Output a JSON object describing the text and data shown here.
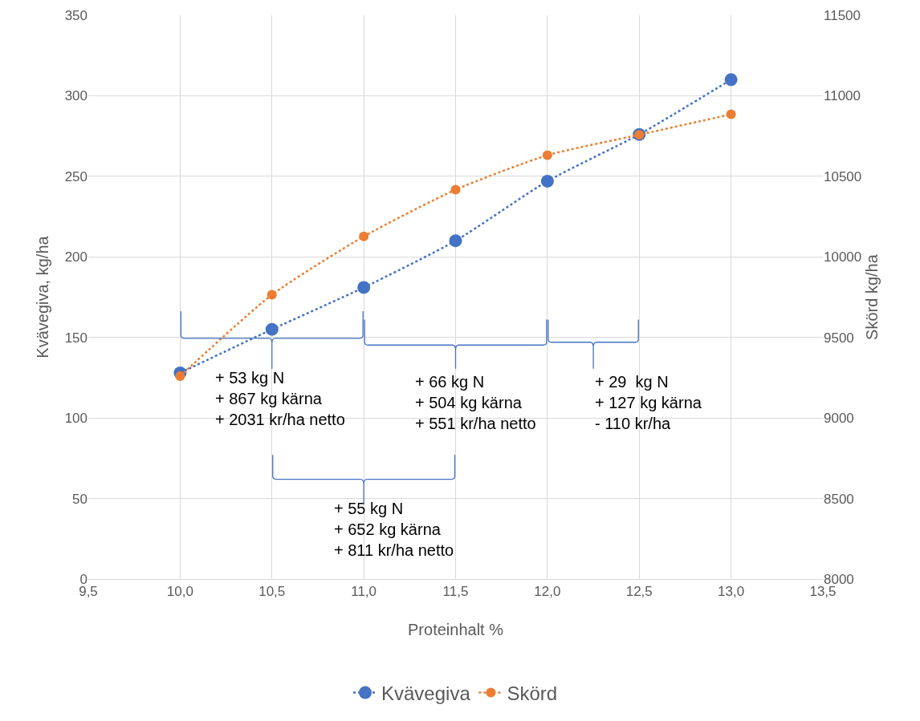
{
  "chart_data": {
    "type": "line",
    "xlabel": "Proteinhalt %",
    "ylabel": "Kvävegiva, kg/ha",
    "y2label": "Skörd kg/ha",
    "x": [
      10.0,
      10.5,
      11.0,
      11.5,
      12.0,
      12.5,
      13.0
    ],
    "series": [
      {
        "name": "Kvävegiva",
        "color": "#4472c4",
        "values": [
          128,
          155,
          181,
          210,
          247,
          276,
          310
        ]
      },
      {
        "name": "Skörd",
        "color": "#ed7d31",
        "axis": "y2",
        "values": [
          9260,
          9765,
          10127,
          10417,
          10631,
          10758,
          10885
        ]
      }
    ],
    "xlim": [
      9.5,
      13.5
    ],
    "xticks": [
      {
        "value": 9.5,
        "label": "9,5"
      },
      {
        "value": 10,
        "label": "10,0"
      },
      {
        "value": 10.5,
        "label": "10,5"
      },
      {
        "value": 11,
        "label": "11,0"
      },
      {
        "value": 11.5,
        "label": "11,5"
      },
      {
        "value": 12,
        "label": "12,0"
      },
      {
        "value": 12.5,
        "label": "12,5"
      },
      {
        "value": 13,
        "label": "13,0"
      },
      {
        "value": 13.5,
        "label": "13,5"
      }
    ],
    "ylim": [
      0,
      350
    ],
    "yticks": [
      0,
      50,
      100,
      150,
      200,
      250,
      300,
      350
    ],
    "y2lim": [
      8000,
      11500
    ],
    "y2ticks": [
      8000,
      8500,
      9000,
      9500,
      10000,
      10500,
      11000,
      11500
    ],
    "annotations": [
      "+ 53 kg N\n+ 867 kg kärna\n+ 2031 kr/ha netto",
      "+ 66 kg N\n+ 504 kg kärna\n+ 551 kr/ha netto",
      "+ 29  kg N\n+ 127 kg kärna\n- 110 kr/ha",
      "+ 55 kg N\n+ 652 kg kärna\n+ 811 kr/ha netto"
    ],
    "grid": true,
    "legend": "bottom",
    "marker": "circle",
    "line_style": "dotted"
  }
}
